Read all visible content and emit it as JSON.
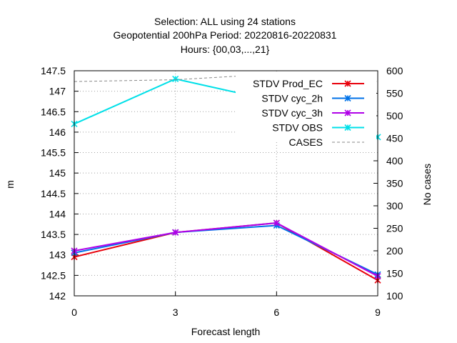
{
  "chart_data": {
    "type": "line",
    "title_lines": [
      "Selection: ALL using    24 stations",
      "Geopotential 200hPa   Period: 20220816-20220831",
      "Hours: {00,03,...,21}"
    ],
    "xlabel": "Forecast length",
    "ylabel": "m",
    "y2label": "No cases",
    "x": [
      0,
      3,
      6,
      9
    ],
    "xticks": [
      "0",
      "3",
      "6",
      "9"
    ],
    "ylim": [
      142,
      147.5
    ],
    "yticks": [
      "142",
      "142.5",
      "143",
      "143.5",
      "144",
      "144.5",
      "145",
      "145.5",
      "146",
      "146.5",
      "147",
      "147.5"
    ],
    "y2lim": [
      100,
      600
    ],
    "y2ticks": [
      "100",
      "150",
      "200",
      "250",
      "300",
      "350",
      "400",
      "450",
      "500",
      "550",
      "600"
    ],
    "grid": true,
    "legend_position": "top-right",
    "series": [
      {
        "name": "STDV Prod_EC",
        "axis": "left",
        "color": "#e8000b",
        "marker": "x",
        "values": [
          142.95,
          143.55,
          143.78,
          142.38
        ]
      },
      {
        "name": "STDV cyc_2h",
        "axis": "left",
        "color": "#0072e8",
        "marker": "x",
        "values": [
          143.05,
          143.55,
          143.72,
          142.52
        ]
      },
      {
        "name": "STDV cyc_3h",
        "axis": "left",
        "color": "#b000e8",
        "marker": "x",
        "values": [
          143.1,
          143.55,
          143.78,
          142.48
        ]
      },
      {
        "name": "STDV OBS",
        "axis": "left",
        "color": "#00e0e8",
        "marker": "x",
        "values": [
          146.2,
          147.3,
          146.75,
          145.88
        ]
      },
      {
        "name": "CASES",
        "axis": "right",
        "color": "#888888",
        "dashed": true,
        "values": [
          576,
          580,
          593,
          576
        ]
      }
    ]
  }
}
